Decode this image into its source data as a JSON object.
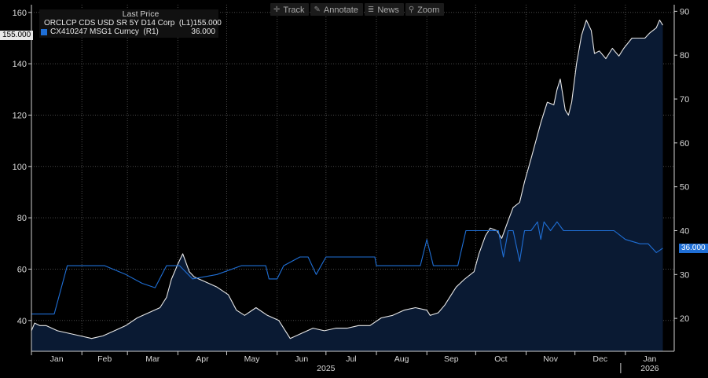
{
  "toolbar": [
    {
      "icon": "crosshair-icon",
      "glyph": "✛",
      "label": "Track"
    },
    {
      "icon": "pencil-icon",
      "glyph": "✎",
      "label": "Annotate"
    },
    {
      "icon": "news-icon",
      "glyph": "≣",
      "label": "News"
    },
    {
      "icon": "magnifier-icon",
      "glyph": "⚲",
      "label": "Zoom"
    }
  ],
  "legend": {
    "header": "Last Price",
    "rows": [
      {
        "name": "ORCLCP CDS USD SR 5Y D14 Corp  (L1)",
        "value": "155.000",
        "color": "#e8e8e8"
      },
      {
        "name": "CX410247 MSG1 Curncy  (R1)",
        "value": "36.000",
        "color": "#1f6fd6"
      }
    ]
  },
  "badges": {
    "left": "155.000",
    "right": "36.000"
  },
  "chart_data": {
    "type": "line",
    "background": "#000000",
    "grid": "vertical and horizontal dotted",
    "x_range": [
      "2025-01-01",
      "2026-01-31"
    ],
    "x_ticks": [
      {
        "date": "2025-01-01",
        "label": "Jan"
      },
      {
        "date": "2025-02-01",
        "label": "Feb"
      },
      {
        "date": "2025-03-01",
        "label": "Mar"
      },
      {
        "date": "2025-04-01",
        "label": "Apr"
      },
      {
        "date": "2025-05-01",
        "label": "May"
      },
      {
        "date": "2025-06-01",
        "label": "Jun"
      },
      {
        "date": "2025-07-01",
        "label": "Jul"
      },
      {
        "date": "2025-08-01",
        "label": "Aug"
      },
      {
        "date": "2025-09-01",
        "label": "Sep"
      },
      {
        "date": "2025-10-01",
        "label": "Oct"
      },
      {
        "date": "2025-11-01",
        "label": "Nov"
      },
      {
        "date": "2025-12-01",
        "label": "Dec"
      },
      {
        "date": "2026-01-01",
        "label": "Jan"
      }
    ],
    "year_labels": [
      {
        "date": "2025-07-01",
        "label": "2025"
      },
      {
        "date": "2026-01-01",
        "label": "2026"
      }
    ],
    "left_axis": {
      "min": 28,
      "max": 163,
      "ticks": [
        40,
        60,
        80,
        100,
        120,
        140,
        160
      ]
    },
    "right_axis": {
      "min": 12.5,
      "max": 91.5,
      "ticks": [
        20,
        30,
        40,
        50,
        60,
        70,
        80,
        90
      ]
    },
    "series": [
      {
        "name": "ORCLCP CDS USD SR 5Y D14 Corp",
        "axis": "left",
        "color": "#e8e8e8",
        "fill": "#0a1a33",
        "points": [
          [
            "2025-01-01",
            36
          ],
          [
            "2025-01-03",
            39
          ],
          [
            "2025-01-06",
            38
          ],
          [
            "2025-01-10",
            38
          ],
          [
            "2025-01-17",
            36
          ],
          [
            "2025-01-24",
            35
          ],
          [
            "2025-01-31",
            34
          ],
          [
            "2025-02-07",
            33
          ],
          [
            "2025-02-14",
            34
          ],
          [
            "2025-02-21",
            36
          ],
          [
            "2025-02-28",
            38
          ],
          [
            "2025-03-07",
            41
          ],
          [
            "2025-03-14",
            43
          ],
          [
            "2025-03-21",
            45
          ],
          [
            "2025-03-25",
            49
          ],
          [
            "2025-03-28",
            56
          ],
          [
            "2025-04-01",
            62
          ],
          [
            "2025-04-04",
            66
          ],
          [
            "2025-04-08",
            59
          ],
          [
            "2025-04-11",
            57
          ],
          [
            "2025-04-18",
            55
          ],
          [
            "2025-04-25",
            53
          ],
          [
            "2025-05-02",
            50
          ],
          [
            "2025-05-07",
            44
          ],
          [
            "2025-05-12",
            42
          ],
          [
            "2025-05-19",
            45
          ],
          [
            "2025-05-26",
            42
          ],
          [
            "2025-06-02",
            40
          ],
          [
            "2025-06-06",
            36
          ],
          [
            "2025-06-09",
            33
          ],
          [
            "2025-06-16",
            35
          ],
          [
            "2025-06-23",
            37
          ],
          [
            "2025-06-30",
            36
          ],
          [
            "2025-07-07",
            37
          ],
          [
            "2025-07-14",
            37
          ],
          [
            "2025-07-21",
            38
          ],
          [
            "2025-07-28",
            38
          ],
          [
            "2025-08-04",
            41
          ],
          [
            "2025-08-11",
            42
          ],
          [
            "2025-08-18",
            44
          ],
          [
            "2025-08-25",
            45
          ],
          [
            "2025-09-01",
            44
          ],
          [
            "2025-09-03",
            42
          ],
          [
            "2025-09-08",
            43
          ],
          [
            "2025-09-12",
            46
          ],
          [
            "2025-09-16",
            50
          ],
          [
            "2025-09-19",
            53
          ],
          [
            "2025-09-24",
            56
          ],
          [
            "2025-09-30",
            59
          ],
          [
            "2025-10-03",
            66
          ],
          [
            "2025-10-07",
            73
          ],
          [
            "2025-10-10",
            76
          ],
          [
            "2025-10-14",
            75
          ],
          [
            "2025-10-17",
            72
          ],
          [
            "2025-10-21",
            79
          ],
          [
            "2025-10-24",
            84
          ],
          [
            "2025-10-28",
            86
          ],
          [
            "2025-10-31",
            94
          ],
          [
            "2025-11-04",
            103
          ],
          [
            "2025-11-07",
            110
          ],
          [
            "2025-11-10",
            117
          ],
          [
            "2025-11-12",
            121
          ],
          [
            "2025-11-14",
            125
          ],
          [
            "2025-11-18",
            124
          ],
          [
            "2025-11-20",
            130
          ],
          [
            "2025-11-22",
            134
          ],
          [
            "2025-11-25",
            122
          ],
          [
            "2025-11-27",
            120
          ],
          [
            "2025-11-29",
            125
          ],
          [
            "2025-12-02",
            140
          ],
          [
            "2025-12-05",
            151
          ],
          [
            "2025-12-08",
            157
          ],
          [
            "2025-12-11",
            153
          ],
          [
            "2025-12-13",
            144
          ],
          [
            "2025-12-16",
            145
          ],
          [
            "2025-12-20",
            142
          ],
          [
            "2025-12-24",
            146
          ],
          [
            "2025-12-28",
            143
          ],
          [
            "2025-12-31",
            146
          ],
          [
            "2026-01-05",
            150
          ],
          [
            "2026-01-09",
            150
          ],
          [
            "2026-01-13",
            150
          ],
          [
            "2026-01-16",
            152
          ],
          [
            "2026-01-20",
            154
          ],
          [
            "2026-01-22",
            157
          ],
          [
            "2026-01-24",
            155
          ]
        ]
      },
      {
        "name": "CX410247 MSG1 Curncy",
        "axis": "right",
        "color": "#1f6fd6",
        "fill": "none",
        "points": [
          [
            "2025-01-01",
            21
          ],
          [
            "2025-01-15",
            21
          ],
          [
            "2025-01-23",
            32
          ],
          [
            "2025-02-15",
            32
          ],
          [
            "2025-02-28",
            30
          ],
          [
            "2025-03-10",
            28
          ],
          [
            "2025-03-18",
            27
          ],
          [
            "2025-03-25",
            32
          ],
          [
            "2025-04-02",
            32
          ],
          [
            "2025-04-10",
            29
          ],
          [
            "2025-04-25",
            30
          ],
          [
            "2025-05-10",
            32
          ],
          [
            "2025-05-25",
            32
          ],
          [
            "2025-05-27",
            29
          ],
          [
            "2025-06-01",
            29
          ],
          [
            "2025-06-05",
            32
          ],
          [
            "2025-06-15",
            34
          ],
          [
            "2025-06-20",
            34
          ],
          [
            "2025-06-25",
            30
          ],
          [
            "2025-07-01",
            34
          ],
          [
            "2025-07-31",
            34
          ],
          [
            "2025-08-01",
            32
          ],
          [
            "2025-08-28",
            32
          ],
          [
            "2025-09-01",
            38
          ],
          [
            "2025-09-05",
            32
          ],
          [
            "2025-09-20",
            32
          ],
          [
            "2025-09-25",
            40
          ],
          [
            "2025-10-05",
            40
          ],
          [
            "2025-10-15",
            40
          ],
          [
            "2025-10-18",
            34
          ],
          [
            "2025-10-21",
            40
          ],
          [
            "2025-10-24",
            40
          ],
          [
            "2025-10-28",
            33
          ],
          [
            "2025-10-31",
            40
          ],
          [
            "2025-11-04",
            40
          ],
          [
            "2025-11-08",
            42
          ],
          [
            "2025-11-10",
            38
          ],
          [
            "2025-11-12",
            42
          ],
          [
            "2025-11-16",
            40
          ],
          [
            "2025-11-20",
            42
          ],
          [
            "2025-11-24",
            40
          ],
          [
            "2025-12-05",
            40
          ],
          [
            "2025-12-12",
            40
          ],
          [
            "2025-12-20",
            40
          ],
          [
            "2025-12-25",
            40
          ],
          [
            "2026-01-01",
            38
          ],
          [
            "2026-01-10",
            37
          ],
          [
            "2026-01-15",
            37
          ],
          [
            "2026-01-20",
            35
          ],
          [
            "2026-01-24",
            36
          ]
        ]
      }
    ]
  }
}
